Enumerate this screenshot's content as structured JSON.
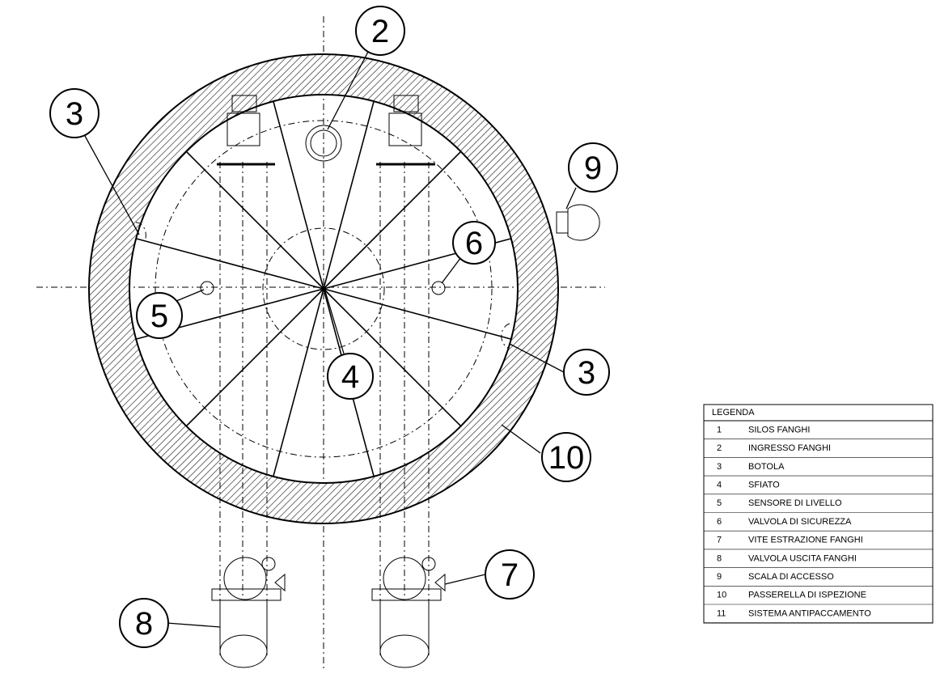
{
  "callouts": [
    "2",
    "3",
    "9",
    "6",
    "5",
    "4",
    "3",
    "10",
    "8",
    "7"
  ],
  "legend": {
    "title": "LEGENDA",
    "rows": [
      [
        "1",
        "SILOS FANGHI"
      ],
      [
        "2",
        "INGRESSO FANGHI"
      ],
      [
        "3",
        "BOTOLA"
      ],
      [
        "4",
        "SFIATO"
      ],
      [
        "5",
        "SENSORE DI LIVELLO"
      ],
      [
        "6",
        "VALVOLA DI SICUREZZA"
      ],
      [
        "7",
        "VITE ESTRAZIONE FANGHI"
      ],
      [
        "8",
        "VALVOLA USCITA FANGHI"
      ],
      [
        "9",
        "SCALA DI ACCESSO"
      ],
      [
        "10",
        "PASSERELLA DI ISPEZIONE"
      ],
      [
        "11",
        "SISTEMA ANTIPACCAMENTO"
      ]
    ]
  }
}
